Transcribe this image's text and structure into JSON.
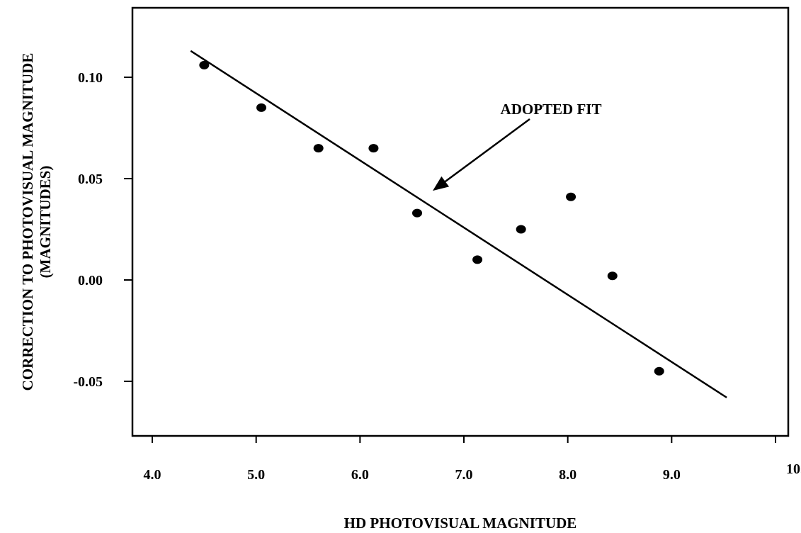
{
  "chart_data": {
    "type": "scatter",
    "title": "",
    "xlabel": "HD PHOTOVISUAL MAGNITUDE",
    "ylabel_lines": [
      "CORRECTION TO PHOTOVISUAL MAGNITUDE",
      "(MAGNITUDES)"
    ],
    "xlim": [
      3.8,
      10.0
    ],
    "ylim": [
      -0.075,
      0.135
    ],
    "x_ticks": [
      {
        "value": 4.0,
        "label": "4.0"
      },
      {
        "value": 5.0,
        "label": "5.0"
      },
      {
        "value": 6.0,
        "label": "6.0"
      },
      {
        "value": 7.0,
        "label": "7.0"
      },
      {
        "value": 8.0,
        "label": "8.0"
      },
      {
        "value": 9.0,
        "label": "9.0"
      },
      {
        "value": 10.0,
        "label": "10.0"
      }
    ],
    "y_ticks": [
      {
        "value": 0.1,
        "label": "0.10"
      },
      {
        "value": 0.05,
        "label": "0.05"
      },
      {
        "value": 0.0,
        "label": "0.00"
      },
      {
        "value": -0.05,
        "label": "-0.05"
      }
    ],
    "series": [
      {
        "x": [
          4.5,
          5.05,
          5.6,
          6.13,
          6.55,
          7.13,
          7.55,
          8.03,
          8.43,
          8.88
        ],
        "y": [
          0.106,
          0.085,
          0.065,
          0.065,
          0.033,
          0.01,
          0.025,
          0.041,
          0.002,
          -0.045
        ],
        "color": "#000000"
      }
    ],
    "fit_line": {
      "x": [
        4.37,
        9.53
      ],
      "y": [
        0.113,
        -0.058
      ],
      "color": "#000000"
    },
    "annotation": {
      "text": "ADOPTED FIT",
      "points_to": {
        "x": 6.7,
        "y": 0.044
      }
    },
    "grid": false,
    "legend": "none"
  }
}
